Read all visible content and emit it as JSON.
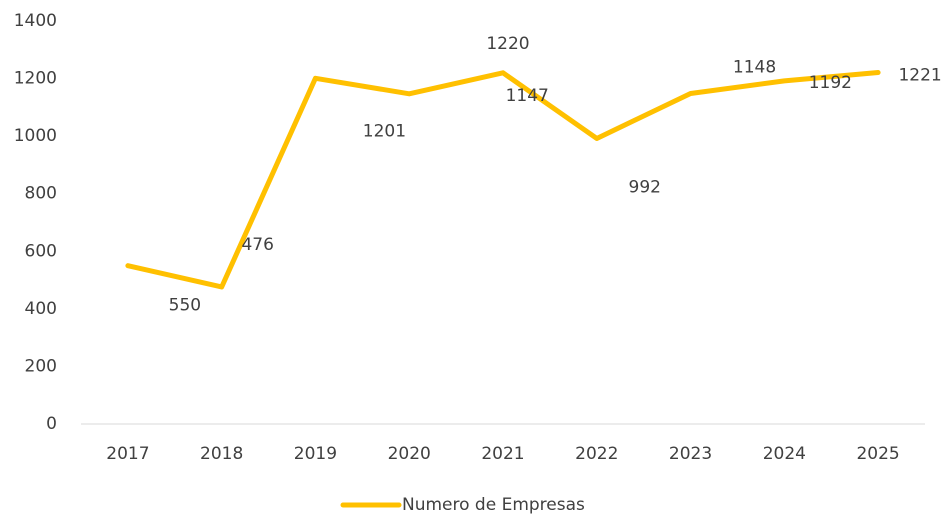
{
  "chart_data": {
    "type": "line",
    "categories": [
      "2017",
      "2018",
      "2019",
      "2020",
      "2021",
      "2022",
      "2023",
      "2024",
      "2025"
    ],
    "series": [
      {
        "name": "Numero de Empresas",
        "color": "#ffc000",
        "values": [
          550,
          476,
          1201,
          1147,
          1220,
          992,
          1148,
          1192,
          1221
        ]
      }
    ],
    "ylim": [
      0,
      1400
    ],
    "yticks": [
      0,
      200,
      400,
      600,
      800,
      1000,
      1200,
      1400
    ],
    "grid": false,
    "legend": "bottom"
  }
}
